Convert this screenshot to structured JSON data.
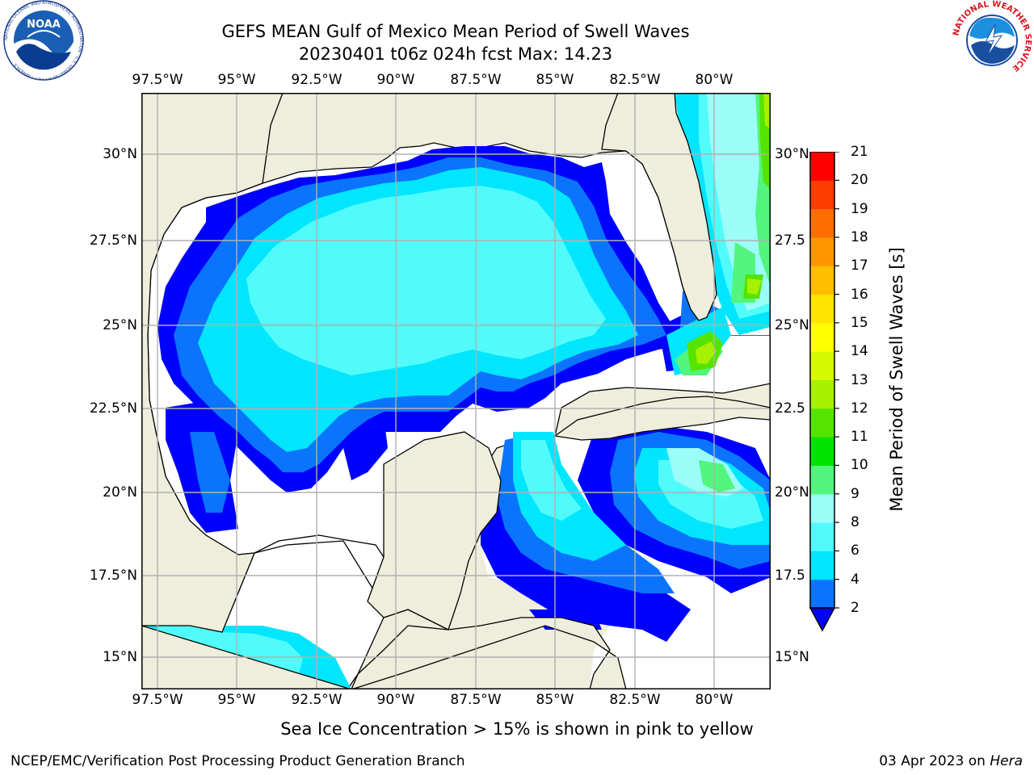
{
  "header": {
    "title_line1": "GEFS MEAN Gulf of Mexico Mean Period of Swell Waves",
    "title_line2": "20230401 t06z 024h fcst   Max: 14.23"
  },
  "logos": {
    "left": {
      "text": "NOAA",
      "ring_text": "NATIONAL OCEANIC AND ATMOSPHERIC ADMINISTRATION · U.S. DEPARTMENT OF COMMERCE"
    },
    "right": {
      "ring_text": "NATIONAL WEATHER SERVICE"
    }
  },
  "map": {
    "lon_labels": [
      "97.5°W",
      "95°W",
      "92.5°W",
      "90°W",
      "87.5°W",
      "85°W",
      "82.5°W",
      "80°W"
    ],
    "lat_labels_left": [
      "30°N",
      "27.5°N",
      "25°N",
      "22.5°N",
      "20°N",
      "17.5°N",
      "15°N"
    ],
    "lat_labels_right": [
      "30°N",
      "27.5",
      "25°N",
      "22.5",
      "20°N",
      "17.5",
      "15°N"
    ],
    "colors": {
      "land": "#efeedc",
      "ocean_no_data": "#ffffff",
      "grid": "#b0b0b0",
      "coast": "#000000"
    }
  },
  "colorbar": {
    "label": "Mean Period of Swell Waves [s]",
    "ticks": [
      "2",
      "4",
      "6",
      "8",
      "9",
      "10",
      "11",
      "12",
      "13",
      "14",
      "15",
      "16",
      "17",
      "18",
      "19",
      "20",
      "21"
    ],
    "levels": [
      2,
      4,
      6,
      8,
      9,
      10,
      11,
      12,
      13,
      14,
      15,
      16,
      17,
      18,
      19,
      20,
      21
    ],
    "colors": [
      "#0a74ff",
      "#00e6ff",
      "#52fbfb",
      "#9cfdf8",
      "#52f57d",
      "#00e200",
      "#55e400",
      "#a7f000",
      "#d6fa00",
      "#ffff00",
      "#ffe400",
      "#ffbe00",
      "#ff9600",
      "#ff6e00",
      "#ff3c00",
      "#ff0000"
    ],
    "under_color": "#0000ff"
  },
  "subtitle": "Sea Ice Concentration > 15% is shown in pink to yellow",
  "footer": {
    "left": "NCEP/EMC/Verification Post Processing Product Generation Branch",
    "date": "03 Apr 2023 on ",
    "machine": "Hera"
  }
}
